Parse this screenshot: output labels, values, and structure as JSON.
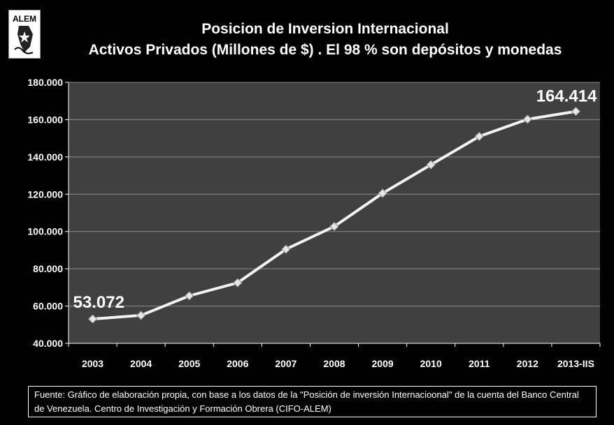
{
  "logo_text": "ALEM",
  "title_line1": "Posicion de Inversion Internacional",
  "title_line2": "Activos Privados  (Millones de $) . El 98 % son depósitos y monedas",
  "footer_text": "Fuente:  Gráfico de elaboración propia, con base a los datos de la \"Posición de inversión  Internacioonal\" de la cuenta del Banco Central de Venezuela. Centro de Investigación y Formación Obrera (CIFO-ALEM)",
  "chart_data": {
    "type": "line",
    "categories": [
      "2003",
      "2004",
      "2005",
      "2006",
      "2007",
      "2008",
      "2009",
      "2010",
      "2011",
      "2012",
      "2013-IIS"
    ],
    "values": [
      53072,
      55000,
      65500,
      72500,
      90500,
      102700,
      120500,
      135800,
      151000,
      160200,
      164414
    ],
    "ylim": [
      40000,
      180000
    ],
    "yticks": [
      "40.000",
      "60.000",
      "80.000",
      "100.000",
      "120.000",
      "140.000",
      "160.000",
      "180.000"
    ],
    "yticks_values": [
      40000,
      60000,
      80000,
      100000,
      120000,
      140000,
      160000,
      180000
    ],
    "annotations": [
      {
        "category": "2003",
        "text": "53.072"
      },
      {
        "category": "2013-IIS",
        "text": "164.414"
      }
    ],
    "grid": true,
    "colors": {
      "background": "#000000",
      "plot_area": "#404040",
      "line": "#f2f2f2",
      "grid": "#8c8c8c",
      "text": "#ffffff"
    }
  }
}
